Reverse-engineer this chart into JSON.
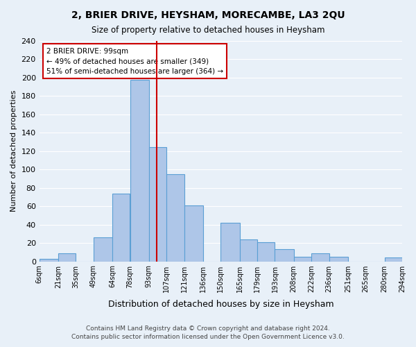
{
  "title": "2, BRIER DRIVE, HEYSHAM, MORECAMBE, LA3 2QU",
  "subtitle": "Size of property relative to detached houses in Heysham",
  "xlabel": "Distribution of detached houses by size in Heysham",
  "ylabel": "Number of detached properties",
  "bar_color": "#aec6e8",
  "bar_edge_color": "#5a9fd4",
  "background_color": "#e8f0f8",
  "grid_color": "#ffffff",
  "vline_x": 99,
  "vline_color": "#cc0000",
  "bin_edges": [
    6,
    21,
    35,
    49,
    64,
    78,
    93,
    107,
    121,
    136,
    150,
    165,
    179,
    193,
    208,
    222,
    236,
    251,
    265,
    280,
    294
  ],
  "bin_labels": [
    "6sqm",
    "21sqm",
    "35sqm",
    "49sqm",
    "64sqm",
    "78sqm",
    "93sqm",
    "107sqm",
    "121sqm",
    "136sqm",
    "150sqm",
    "165sqm",
    "179sqm",
    "193sqm",
    "208sqm",
    "222sqm",
    "236sqm",
    "251sqm",
    "265sqm",
    "280sqm",
    "294sqm"
  ],
  "counts": [
    3,
    9,
    0,
    26,
    74,
    198,
    124,
    95,
    61,
    0,
    42,
    24,
    21,
    13,
    5,
    9,
    5,
    0,
    0,
    4
  ],
  "ylim": [
    0,
    240
  ],
  "yticks": [
    0,
    20,
    40,
    60,
    80,
    100,
    120,
    140,
    160,
    180,
    200,
    220,
    240
  ],
  "annotation_title": "2 BRIER DRIVE: 99sqm",
  "annotation_line1": "← 49% of detached houses are smaller (349)",
  "annotation_line2": "51% of semi-detached houses are larger (364) →",
  "annotation_box_color": "#ffffff",
  "annotation_box_edge": "#cc0000",
  "footnote1": "Contains HM Land Registry data © Crown copyright and database right 2024.",
  "footnote2": "Contains public sector information licensed under the Open Government Licence v3.0."
}
